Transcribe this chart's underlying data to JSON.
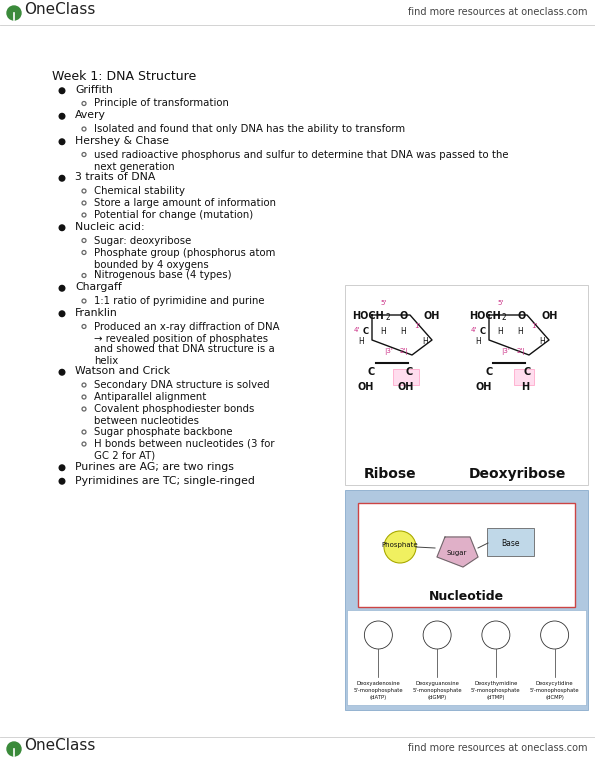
{
  "bg_color": "#ffffff",
  "logo_green": "#3a8a3a",
  "text_dark": "#111111",
  "text_gray": "#444444",
  "line_gray": "#cccccc",
  "nucleotide_bg": "#b0c8e0",
  "nucleotide_inner_bg": "#ffffff",
  "nucleotide_border": "#cc4444",
  "phosphate_yellow": "#f0f060",
  "sugar_pink": "#e0b0c8",
  "base_blue": "#c0d8e8",
  "small_diagram_bg": "#b0c8e0",
  "header_text": "find more resources at oneclass.com",
  "logo_text": "OneClass",
  "title": "Week 1: DNA Structure",
  "content": [
    {
      "type": "bullet",
      "text": "Griffith"
    },
    {
      "type": "sub",
      "text": "Principle of transformation"
    },
    {
      "type": "bullet",
      "text": "Avery"
    },
    {
      "type": "sub",
      "text": "Isolated and found that only DNA has the ability to transform"
    },
    {
      "type": "bullet",
      "text": "Hershey & Chase"
    },
    {
      "type": "sub",
      "text": "used radioactive phosphorus and sulfur to determine that DNA was passed to the"
    },
    {
      "type": "sub_cont",
      "text": "next generation"
    },
    {
      "type": "bullet",
      "text": "3 traits of DNA"
    },
    {
      "type": "sub",
      "text": "Chemical stability"
    },
    {
      "type": "sub",
      "text": "Store a large amount of information"
    },
    {
      "type": "sub",
      "text": "Potential for change (mutation)"
    },
    {
      "type": "bullet",
      "text": "Nucleic acid:"
    },
    {
      "type": "sub",
      "text": "Sugar: deoxyribose"
    },
    {
      "type": "sub",
      "text": "Phosphate group (phosphorus atom"
    },
    {
      "type": "sub_cont",
      "text": "bounded by 4 oxygens"
    },
    {
      "type": "sub",
      "text": "Nitrogenous base (4 types)"
    },
    {
      "type": "bullet",
      "text": "Chargaff"
    },
    {
      "type": "sub",
      "text": "1:1 ratio of pyrimidine and purine"
    },
    {
      "type": "bullet",
      "text": "Franklin"
    },
    {
      "type": "sub",
      "text": "Produced an x-ray diffraction of DNA"
    },
    {
      "type": "sub_cont",
      "text": "→ revealed position of phosphates"
    },
    {
      "type": "sub_cont",
      "text": "and showed that DNA structure is a"
    },
    {
      "type": "sub_cont",
      "text": "helix"
    },
    {
      "type": "bullet",
      "text": "Watson and Crick"
    },
    {
      "type": "sub",
      "text": "Secondary DNA structure is solved"
    },
    {
      "type": "sub",
      "text": "Antiparallel alignment"
    },
    {
      "type": "sub",
      "text": "Covalent phosphodiester bonds"
    },
    {
      "type": "sub_cont",
      "text": "between nucleotides"
    },
    {
      "type": "sub",
      "text": "Sugar phosphate backbone"
    },
    {
      "type": "sub",
      "text": "H bonds between nucleotides (3 for"
    },
    {
      "type": "sub_cont",
      "text": "GC 2 for AT)"
    },
    {
      "type": "bullet",
      "text": "Purines are AG; are two rings"
    },
    {
      "type": "bullet",
      "text": "Pyrimidines are TC; single-ringed"
    }
  ]
}
